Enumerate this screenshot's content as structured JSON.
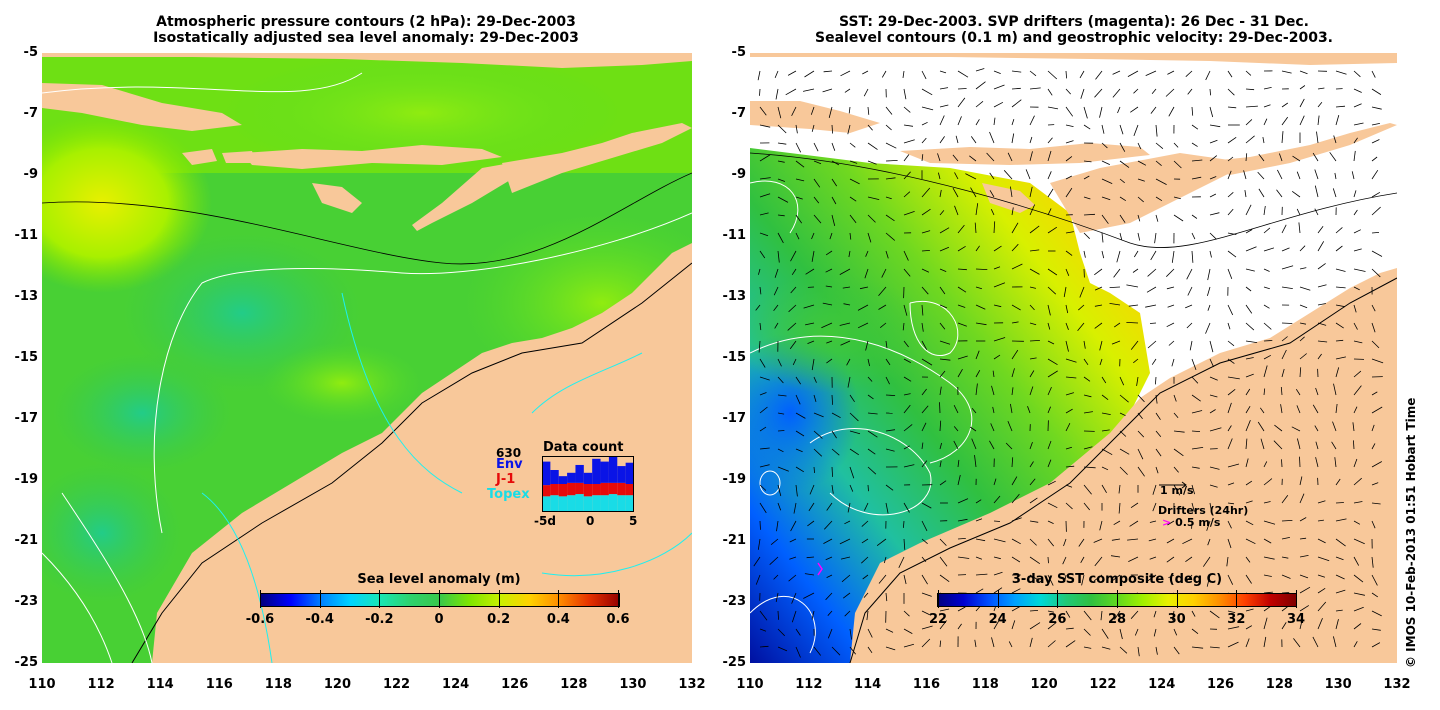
{
  "left_panel": {
    "title_line1": "Atmospheric pressure contours (2 hPa): 29-Dec-2003",
    "title_line2": "Isostatically adjusted sea level anomaly: 29-Dec-2003",
    "colorbar": {
      "title": "Sea level anomaly (m)",
      "ticks": [
        "-0.6",
        "-0.4",
        "-0.2",
        "0",
        "0.2",
        "0.4",
        "0.6"
      ]
    },
    "data_count": {
      "title": "Data count",
      "total": "630",
      "legend": [
        {
          "label": "Env",
          "color": "#0a14e6"
        },
        {
          "label": "J-1",
          "color": "#e60a0a"
        },
        {
          "label": "Topex",
          "color": "#19dce6"
        }
      ],
      "x_ticks": [
        "-5d",
        "0",
        "5"
      ],
      "bars": [
        {
          "topex": 0.28,
          "j1": 0.2,
          "env": 0.42
        },
        {
          "topex": 0.3,
          "j1": 0.2,
          "env": 0.25
        },
        {
          "topex": 0.28,
          "j1": 0.22,
          "env": 0.14
        },
        {
          "topex": 0.3,
          "j1": 0.22,
          "env": 0.18
        },
        {
          "topex": 0.32,
          "j1": 0.2,
          "env": 0.32
        },
        {
          "topex": 0.28,
          "j1": 0.22,
          "env": 0.2
        },
        {
          "topex": 0.3,
          "j1": 0.2,
          "env": 0.45
        },
        {
          "topex": 0.3,
          "j1": 0.22,
          "env": 0.38
        },
        {
          "topex": 0.32,
          "j1": 0.2,
          "env": 0.5
        },
        {
          "topex": 0.3,
          "j1": 0.22,
          "env": 0.3
        },
        {
          "topex": 0.3,
          "j1": 0.2,
          "env": 0.38
        }
      ]
    }
  },
  "right_panel": {
    "title_line1": "SST: 29-Dec-2003. SVP drifters (magenta): 26 Dec - 31 Dec.",
    "title_line2": "Sealevel contours (0.1 m) and geostrophic velocity: 29-Dec-2003.",
    "colorbar": {
      "title": "3-day SST composite (deg C)",
      "ticks": [
        "22",
        "24",
        "26",
        "28",
        "30",
        "32",
        "34"
      ]
    },
    "velocity_scale_label": "1 m/s",
    "drifters_label": "Drifters (24hr)",
    "drifters_scale_label": "0.5 m/s"
  },
  "axes": {
    "y_ticks": [
      "-5",
      "-7",
      "-9",
      "-11",
      "-13",
      "-15",
      "-17",
      "-19",
      "-21",
      "-23",
      "-25"
    ],
    "x_ticks": [
      "110",
      "112",
      "114",
      "116",
      "118",
      "120",
      "122",
      "124",
      "126",
      "128",
      "130",
      "132"
    ]
  },
  "credit": "© IMOS 10-Feb-2013 01:51 Hobart Time",
  "colors": {
    "land": "#f8c89a",
    "sla_cmap": [
      "#00007f",
      "#0000ff",
      "#007fff",
      "#00d4ff",
      "#19e6b4",
      "#2fd26e",
      "#38c84b",
      "#50dc28",
      "#7fe600",
      "#c8f000",
      "#ffd200",
      "#ff8c00",
      "#e63200",
      "#960000"
    ],
    "sst_cmap": [
      "#00007f",
      "#0000d0",
      "#0050ff",
      "#00a0ff",
      "#00d8d8",
      "#20c878",
      "#30c040",
      "#60d820",
      "#a0f000",
      "#e8f000",
      "#ffd000",
      "#ff9000",
      "#ff4000",
      "#c00000",
      "#800000"
    ]
  }
}
